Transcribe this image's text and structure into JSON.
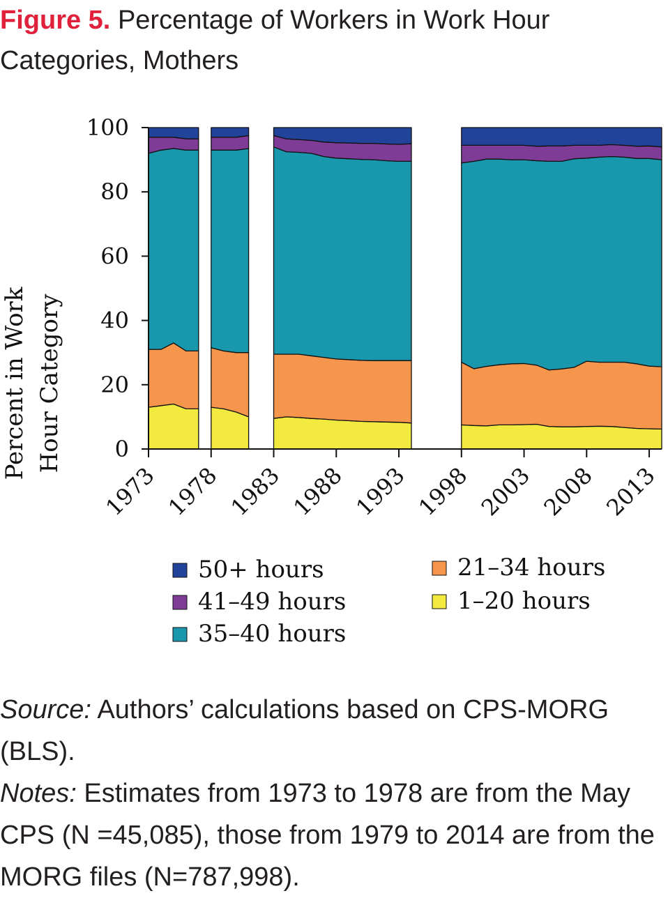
{
  "figure": {
    "label": "Figure 5.",
    "title": "Percentage of Workers in Work Hour Categories, Mothers"
  },
  "chart_data": {
    "type": "area",
    "stacked": true,
    "ylabel_lines": [
      "Percent in Work",
      "Hour Category"
    ],
    "xlabel": "",
    "xlim": [
      1973,
      2014
    ],
    "ylim": [
      0,
      100
    ],
    "yticks": [
      0,
      20,
      40,
      60,
      80,
      100
    ],
    "xticks": [
      1973,
      1978,
      1983,
      1988,
      1993,
      1998,
      2003,
      2008,
      2013
    ],
    "xtick_labels": [
      "1973",
      "1978",
      "1983",
      "1988",
      "1993",
      "1998",
      "2003",
      "2008",
      "2013"
    ],
    "grid": false,
    "legend_position": "bottom",
    "series": [
      {
        "name": "1–20 hours",
        "color": "#f3ea3f"
      },
      {
        "name": "21–34 hours",
        "color": "#f5964c"
      },
      {
        "name": "35–40 hours",
        "color": "#1997ac"
      },
      {
        "name": "41–49 hours",
        "color": "#7e3c96"
      },
      {
        "name": "50+ hours",
        "color": "#21449a"
      }
    ],
    "segments": [
      {
        "x": [
          1973,
          1974,
          1975,
          1976,
          1977
        ],
        "values": [
          [
            13,
            13.5,
            14,
            12.5,
            12.5
          ],
          [
            18,
            17.5,
            19,
            18,
            18
          ],
          [
            61,
            62,
            60.5,
            62.5,
            62.5
          ],
          [
            5,
            4,
            3.5,
            3.5,
            3.5
          ],
          [
            3,
            3,
            3,
            3.5,
            3.5
          ]
        ]
      },
      {
        "x": [
          1978,
          1979,
          1980,
          1981
        ],
        "values": [
          [
            13,
            12.5,
            11.5,
            10
          ],
          [
            18.5,
            18,
            18.5,
            20
          ],
          [
            61.5,
            62.5,
            63,
            63.5
          ],
          [
            4,
            4,
            4,
            4
          ],
          [
            3,
            3,
            3,
            2.5
          ]
        ]
      },
      {
        "x": [
          1983,
          1984,
          1985,
          1986,
          1987,
          1988,
          1989,
          1990,
          1991,
          1992,
          1993,
          1994
        ],
        "values": [
          [
            9.5,
            10,
            9.8,
            9.5,
            9.3,
            9,
            8.8,
            8.6,
            8.5,
            8.4,
            8.3,
            8.1
          ],
          [
            20,
            19.5,
            19.7,
            19.5,
            19.2,
            19,
            19,
            19,
            19,
            19.1,
            19.2,
            19.4
          ],
          [
            64.5,
            63,
            62.8,
            63,
            62.5,
            62.5,
            62.5,
            62.5,
            62.5,
            62.2,
            62,
            62
          ],
          [
            3.5,
            4,
            4,
            4,
            4.5,
            4.8,
            4.9,
            5,
            5.1,
            5.2,
            5.3,
            5.5
          ],
          [
            2.5,
            3.5,
            3.7,
            4,
            4.5,
            4.7,
            4.8,
            4.9,
            4.9,
            5.1,
            5.2,
            5
          ]
        ]
      },
      {
        "x": [
          1998,
          1999,
          2000,
          2001,
          2002,
          2003,
          2004,
          2005,
          2006,
          2007,
          2008,
          2009,
          2010,
          2011,
          2012,
          2013,
          2014
        ],
        "values": [
          [
            7.5,
            7.3,
            7.2,
            7.5,
            7.5,
            7.6,
            7.7,
            7,
            6.9,
            6.9,
            7,
            7.1,
            7,
            6.7,
            6.4,
            6.3,
            6.2
          ],
          [
            19.5,
            17.7,
            18.5,
            18.7,
            19,
            19,
            18.4,
            17.6,
            18,
            18.5,
            20.3,
            19.9,
            20,
            20.3,
            20.1,
            19.5,
            19.4
          ],
          [
            62,
            64.5,
            64.5,
            64,
            63.5,
            63.4,
            63.6,
            64.9,
            64.6,
            64.9,
            63.2,
            63.8,
            64,
            63.8,
            63.9,
            64.6,
            64.4
          ],
          [
            5.5,
            5,
            4.3,
            4.3,
            4.5,
            4.5,
            4.5,
            4.8,
            4.8,
            4.2,
            4,
            3.7,
            3.7,
            3.7,
            3.8,
            3.9,
            4
          ],
          [
            5.5,
            5.5,
            5.5,
            5.5,
            5.5,
            5.5,
            5.8,
            5.7,
            5.7,
            5.5,
            5.5,
            5.5,
            5.3,
            5.5,
            5.8,
            5.7,
            6
          ]
        ]
      }
    ],
    "legend": {
      "left_column": [
        "50+ hours",
        "41–49 hours",
        "35–40 hours"
      ],
      "right_column": [
        "21–34 hours",
        "1–20 hours"
      ]
    }
  },
  "caption": {
    "source_label": "Source:",
    "source_text": " Authors’ calculations based on CPS-MORG (BLS).",
    "notes_label": "Notes:",
    "notes_text": " Estimates from 1973 to 1978 are from the May CPS (N =45,085), those from 1979 to 2014 are from the MORG files (N=787,998)."
  }
}
